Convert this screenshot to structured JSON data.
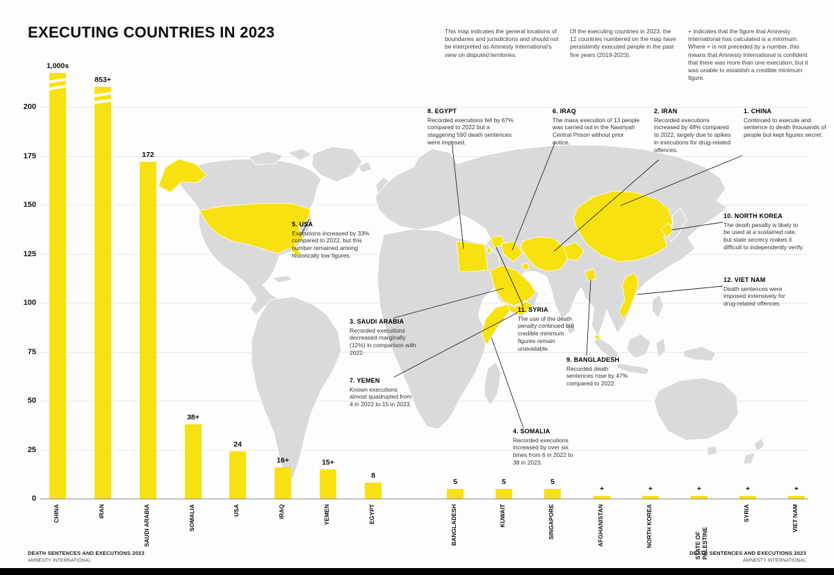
{
  "title": "EXECUTING COUNTRIES IN 2023",
  "accent_color": "#F8E111",
  "map_color": "#DADADA",
  "notes": [
    "This map indicates the general locations of boundaries and jurisdictions and should not be interpreted as Amnesty International's view on disputed territories.",
    "Of the executing countries in 2023, the 12 countries numbered on the map have persistently executed people in the past five years (2019-2023).",
    "+ indicates that the figure that Amnesty International has calculated is a minimum. Where + is not preceded by a number, this means that Amnesty International is confident that there was more than one execution, but it was unable to establish a credible minimum figure."
  ],
  "chart_data": {
    "type": "bar",
    "title": "EXECUTING COUNTRIES IN 2023",
    "xlabel": "",
    "ylabel": "",
    "ylim": [
      0,
      200
    ],
    "yticks": [
      0,
      25,
      50,
      75,
      100,
      125,
      150,
      175,
      200
    ],
    "grid": true,
    "bar_color": "#F8E111",
    "categories": [
      "CHINA",
      "IRAN",
      "SAUDI ARABIA",
      "SOMALIA",
      "USA",
      "IRAQ",
      "YEMEN",
      "EGYPT",
      "BANGLADESH",
      "KUWAIT",
      "SINGAPORE",
      "AFGHANISTAN",
      "NORTH KOREA",
      "STATE OF PALESTINE",
      "SYRIA",
      "VIET NAM"
    ],
    "values": [
      1000,
      853,
      172,
      38,
      24,
      16,
      15,
      8,
      5,
      5,
      5,
      null,
      null,
      null,
      null,
      null
    ],
    "value_labels": [
      "1,000s",
      "853+",
      "172",
      "38+",
      "24",
      "16+",
      "15+",
      "8",
      "5",
      "5",
      "5",
      "+",
      "+",
      "+",
      "+",
      "+"
    ]
  },
  "callouts": [
    {
      "title": "1. CHINA",
      "body": "Continued to execute and sentence to death thousands of people but kept figures secret."
    },
    {
      "title": "2. IRAN",
      "body": "Recorded executions increased by 48% compared to 2022, largely due to spikes in executions for drug-related offences."
    },
    {
      "title": "3. SAUDI ARABIA",
      "body": "Recorded executions decreased marginally (12%) in comparison with 2022."
    },
    {
      "title": "4. SOMALIA",
      "body": "Recorded executions increased by over six times from 6 in 2022 to 38 in 2023."
    },
    {
      "title": "5. USA",
      "body": "Executions increased by 33% compared to 2022, but this number remained among historically low figures."
    },
    {
      "title": "6. IRAQ",
      "body": "The mass execution of 13 people was carried out in the Nasiriyah Central Prison without prior notice."
    },
    {
      "title": "7. YEMEN",
      "body": "Known executions almost quadrupled from 4 in 2022 to 15 in 2023."
    },
    {
      "title": "8. EGYPT",
      "body": "Recorded executions fell by 67% compared to 2022 but a staggering 590 death sentences were imposed."
    },
    {
      "title": "9. BANGLADESH",
      "body": "Recorded death sentences rose by 47% compared to 2022."
    },
    {
      "title": "10. NORTH KOREA",
      "body": "The death penalty is likely to be used at a sustained rate, but state secrecy makes it difficult to independently verify."
    },
    {
      "title": "11. SYRIA",
      "body": "The use of the death penalty continued but credible minimum figures remain unavailable."
    },
    {
      "title": "12. VIET NAM",
      "body": "Death sentences were imposed extensively for drug-related offences."
    }
  ],
  "map": {
    "highlighted_countries": [
      "China",
      "Iran",
      "Saudi Arabia",
      "Somalia",
      "USA",
      "Iraq",
      "Yemen",
      "Egypt",
      "Bangladesh",
      "Kuwait",
      "Singapore",
      "Afghanistan",
      "North Korea",
      "State of Palestine",
      "Syria",
      "Viet Nam"
    ]
  },
  "footer": {
    "left": {
      "line1": "DEATH SENTENCES AND EXECUTIONS 2023",
      "line2": "AMNESTY INTERNATIONAL"
    },
    "right": {
      "line1": "DEATH SENTENCES AND EXECUTIONS 2023",
      "line2": "AMNESTY INTERNATIONAL"
    }
  }
}
